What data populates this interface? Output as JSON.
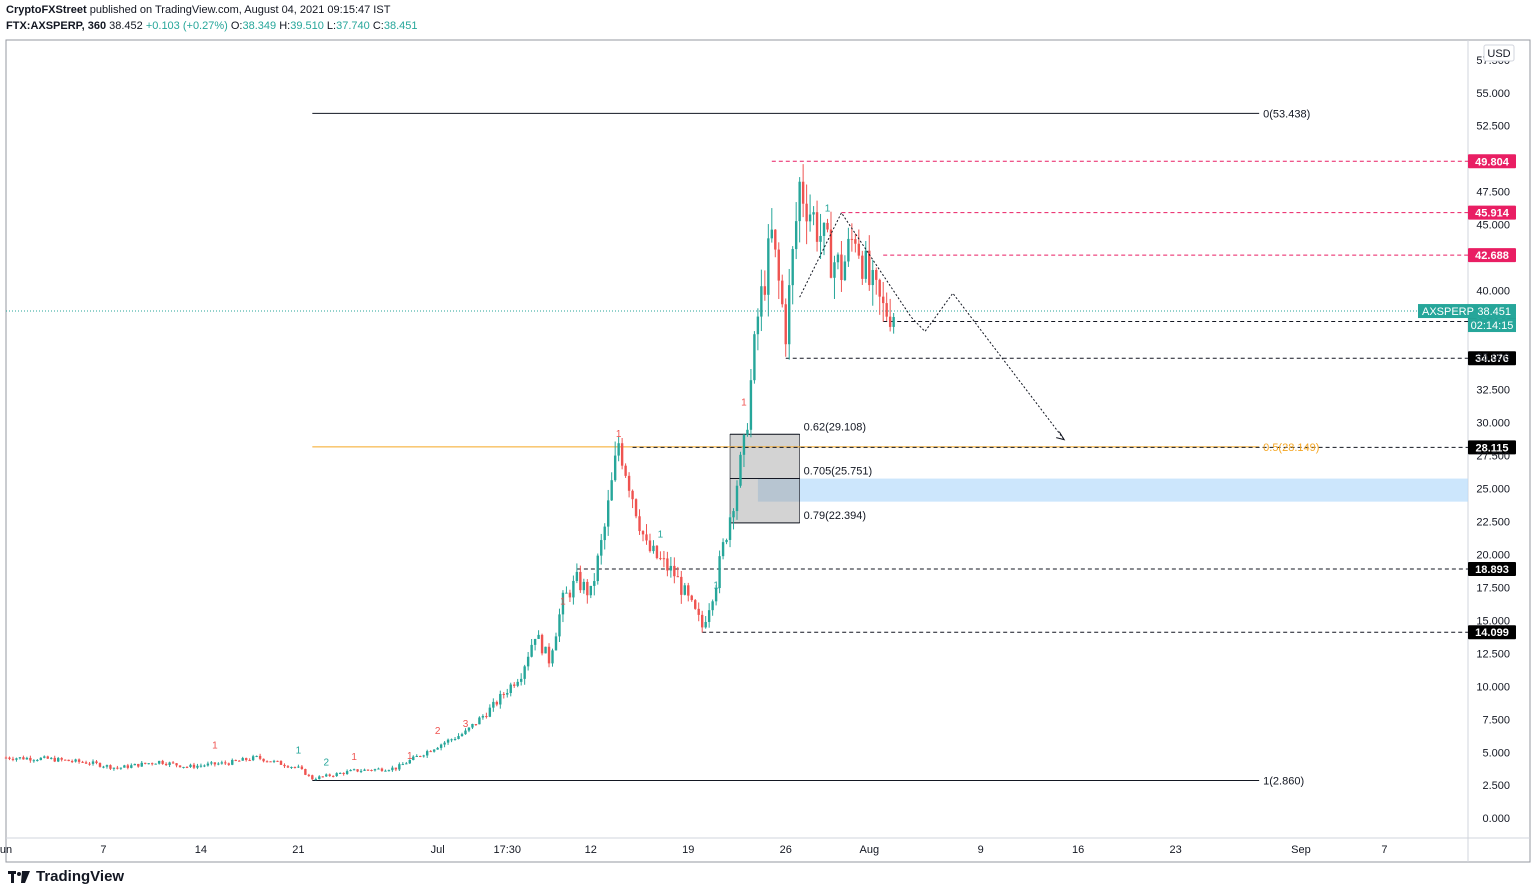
{
  "header": {
    "publisher": "CryptoFXStreet",
    "published_text": "published on TradingView.com, August 04, 2021 09:15:47 IST",
    "symbol": "FTX:AXSPERP, 360",
    "last": "38.452",
    "change": "+0.103 (+0.27%)",
    "o_label": "O:",
    "o_value": "38.349",
    "h_label": "H:",
    "h_value": "39.510",
    "l_label": "L:",
    "l_value": "37.740",
    "c_label": "C:",
    "c_value": "38.451"
  },
  "footer": {
    "brand": "TradingView"
  },
  "colors": {
    "up": "#26a69a",
    "down": "#ef5350",
    "resistance": "#e91e63",
    "support_label_bg": "#000000",
    "fib_golden": "#f5a623",
    "zone": "#bbdefb",
    "current_price": "#26a69a"
  },
  "chart_data": {
    "type": "candlestick",
    "y_unit": "USD",
    "ylim": [
      -1.5,
      59
    ],
    "xlim": [
      "2021-05-31",
      "2021-09-13"
    ],
    "y_ticks": [
      0,
      2.5,
      5,
      7.5,
      10,
      12.5,
      15,
      17.5,
      20,
      22.5,
      25,
      27.5,
      30,
      32.5,
      35,
      40,
      45,
      47.5,
      52.5,
      55,
      57.5
    ],
    "y_tick_labels": [
      "0.000",
      "2.500",
      "5.000",
      "7.500",
      "10.000",
      "12.500",
      "15.000",
      "17.500",
      "20.000",
      "22.500",
      "25.000",
      "27.500",
      "30.000",
      "32.500",
      "35.000",
      "40.000",
      "45.000",
      "47.500",
      "52.500",
      "55.000",
      "57.500"
    ],
    "x_ticks": [
      {
        "label": "un",
        "date": "2021-05-31"
      },
      {
        "label": "7",
        "date": "2021-06-07"
      },
      {
        "label": "14",
        "date": "2021-06-14"
      },
      {
        "label": "21",
        "date": "2021-06-21"
      },
      {
        "label": "Jul",
        "date": "2021-07-01"
      },
      {
        "label": "17:30",
        "date": "2021-07-06"
      },
      {
        "label": "12",
        "date": "2021-07-12"
      },
      {
        "label": "19",
        "date": "2021-07-19"
      },
      {
        "label": "26",
        "date": "2021-07-26"
      },
      {
        "label": "Aug",
        "date": "2021-08-01"
      },
      {
        "label": "9",
        "date": "2021-08-09"
      },
      {
        "label": "16",
        "date": "2021-08-16"
      },
      {
        "label": "23",
        "date": "2021-08-23"
      },
      {
        "label": "Sep",
        "date": "2021-09-01"
      },
      {
        "label": "7",
        "date": "2021-09-07"
      }
    ],
    "price_path": [
      {
        "date": "2021-05-31",
        "close": 4.6
      },
      {
        "date": "2021-06-03",
        "close": 4.5
      },
      {
        "date": "2021-06-06",
        "close": 4.2
      },
      {
        "date": "2021-06-08",
        "close": 3.8
      },
      {
        "date": "2021-06-11",
        "close": 4.3
      },
      {
        "date": "2021-06-13",
        "close": 3.9
      },
      {
        "date": "2021-06-16",
        "close": 4.2
      },
      {
        "date": "2021-06-18",
        "close": 4.6
      },
      {
        "date": "2021-06-21",
        "close": 3.8
      },
      {
        "date": "2021-06-22",
        "close": 3.0
      },
      {
        "date": "2021-06-25",
        "close": 3.6
      },
      {
        "date": "2021-06-28",
        "close": 3.8
      },
      {
        "date": "2021-07-01",
        "close": 5.5
      },
      {
        "date": "2021-07-03",
        "close": 6.5
      },
      {
        "date": "2021-07-05",
        "close": 8.5
      },
      {
        "date": "2021-07-07",
        "close": 11.0
      },
      {
        "date": "2021-07-08",
        "close": 14.0
      },
      {
        "date": "2021-07-09",
        "close": 12.0
      },
      {
        "date": "2021-07-10",
        "close": 16.5
      },
      {
        "date": "2021-07-11",
        "close": 18.0
      },
      {
        "date": "2021-07-12",
        "close": 17.0
      },
      {
        "date": "2021-07-13",
        "close": 22.0
      },
      {
        "date": "2021-07-14",
        "close": 28.5
      },
      {
        "date": "2021-07-15",
        "close": 24.5
      },
      {
        "date": "2021-07-16",
        "close": 20.5
      },
      {
        "date": "2021-07-17",
        "close": 19.5
      },
      {
        "date": "2021-07-18",
        "close": 18.5
      },
      {
        "date": "2021-07-19",
        "close": 16.5
      },
      {
        "date": "2021-07-20",
        "close": 14.5
      },
      {
        "date": "2021-07-21",
        "close": 18.0
      },
      {
        "date": "2021-07-22",
        "close": 23.0
      },
      {
        "date": "2021-07-23",
        "close": 28.0
      },
      {
        "date": "2021-07-24",
        "close": 38.0
      },
      {
        "date": "2021-07-25",
        "close": 44.0
      },
      {
        "date": "2021-07-26",
        "close": 37.0
      },
      {
        "date": "2021-07-27",
        "close": 48.0
      },
      {
        "date": "2021-07-28",
        "close": 45.5
      },
      {
        "date": "2021-07-29",
        "close": 43.0
      },
      {
        "date": "2021-07-30",
        "close": 41.5
      },
      {
        "date": "2021-07-31",
        "close": 44.5
      },
      {
        "date": "2021-08-01",
        "close": 40.5
      },
      {
        "date": "2021-08-02",
        "close": 38.5
      },
      {
        "date": "2021-08-03",
        "close": 38.45
      }
    ],
    "swing_labels": [
      {
        "text": "1",
        "date": "2021-06-15",
        "price": 5.3,
        "color": "down"
      },
      {
        "text": "1",
        "date": "2021-06-21",
        "price": 4.9,
        "color": "up"
      },
      {
        "text": "2",
        "date": "2021-06-23",
        "price": 4.0,
        "color": "up"
      },
      {
        "text": "1",
        "date": "2021-06-25",
        "price": 4.4,
        "color": "down"
      },
      {
        "text": "1",
        "date": "2021-06-29",
        "price": 4.5,
        "color": "down"
      },
      {
        "text": "2",
        "date": "2021-07-01",
        "price": 6.4,
        "color": "down"
      },
      {
        "text": "3",
        "date": "2021-07-03",
        "price": 6.9,
        "color": "down"
      },
      {
        "text": "1",
        "date": "2021-07-10",
        "price": 16.2,
        "color": "down"
      },
      {
        "text": "1",
        "date": "2021-07-14",
        "price": 28.9,
        "color": "down"
      },
      {
        "text": "1",
        "date": "2021-07-17",
        "price": 21.3,
        "color": "up"
      },
      {
        "text": "1",
        "date": "2021-07-21",
        "price": 17.4,
        "color": "up"
      },
      {
        "text": "1",
        "date": "2021-07-23",
        "price": 31.3,
        "color": "down"
      },
      {
        "text": "1",
        "date": "2021-07-29",
        "price": 46.0,
        "color": "up"
      }
    ],
    "fib_levels": [
      {
        "label": "0(53.438)",
        "price": 53.438,
        "from": "2021-06-22",
        "to": "2021-08-29",
        "color": "#131722"
      },
      {
        "label": "1(2.860)",
        "price": 2.86,
        "from": "2021-06-22",
        "to": "2021-08-29",
        "color": "#131722"
      },
      {
        "label": "0.5(28.149)",
        "price": 28.149,
        "from": "2021-06-22",
        "to": "2021-08-29",
        "color": "#f5a623"
      }
    ],
    "retracement_box": {
      "from": "2021-07-22",
      "to": "2021-07-27",
      "levels": [
        {
          "label": "0.62(29.108)",
          "price": 29.108
        },
        {
          "label": "0.705(25.751)",
          "price": 25.751
        },
        {
          "label": "0.79(22.394)",
          "price": 22.394
        }
      ]
    },
    "demand_zone": {
      "from": "2021-07-24",
      "to": "2021-09-13",
      "low": 24.0,
      "high": 25.75
    },
    "horizontal_levels": [
      {
        "label": "49.804",
        "price": 49.804,
        "from": "2021-07-25",
        "style": "resistance"
      },
      {
        "label": "45.914",
        "price": 45.914,
        "from": "2021-07-30",
        "style": "resistance"
      },
      {
        "label": "42.688",
        "price": 42.688,
        "from": "2021-08-02",
        "style": "resistance"
      },
      {
        "label": "37.656",
        "price": 37.656,
        "from": "2021-08-02",
        "style": "support"
      },
      {
        "label": "34.876",
        "price": 34.876,
        "from": "2021-07-26",
        "style": "support"
      },
      {
        "label": "28.115",
        "price": 28.115,
        "from": "2021-07-15",
        "style": "support"
      },
      {
        "label": "18.893",
        "price": 18.893,
        "from": "2021-07-11",
        "style": "support"
      },
      {
        "label": "14.099",
        "price": 14.099,
        "from": "2021-07-20",
        "style": "support"
      }
    ],
    "projection_path": [
      {
        "date": "2021-07-27",
        "price": 39.5
      },
      {
        "date": "2021-07-30",
        "price": 45.9
      },
      {
        "date": "2021-08-04",
        "price": 38.0
      },
      {
        "date": "2021-08-05",
        "price": 36.9
      },
      {
        "date": "2021-08-07",
        "price": 39.8
      },
      {
        "date": "2021-08-15",
        "price": 28.7
      }
    ],
    "current_price": {
      "symbol": "AXSPERP",
      "value": "38.451",
      "countdown": "02:14:15",
      "price": 38.451
    }
  }
}
